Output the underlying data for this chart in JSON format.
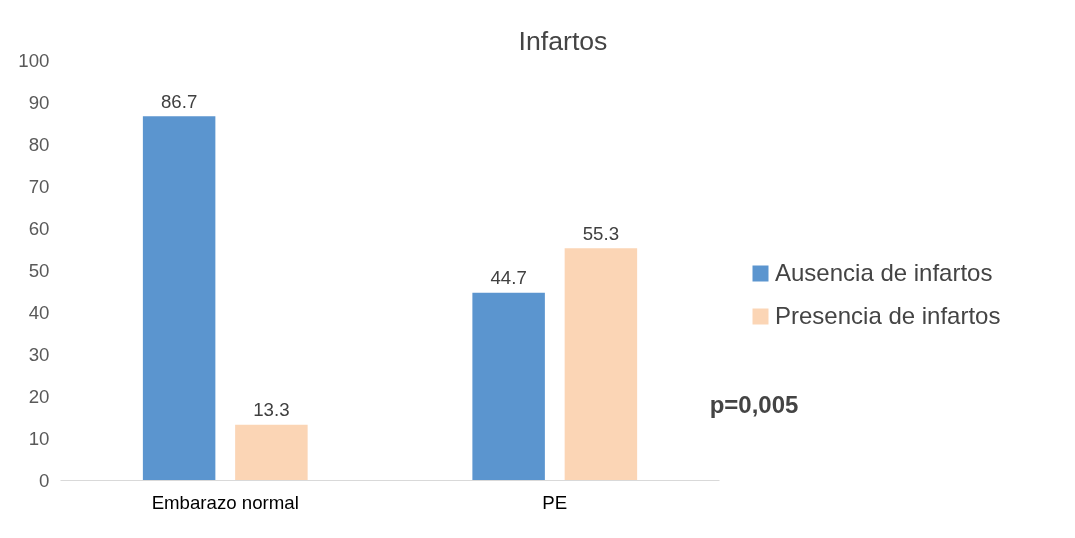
{
  "chart_data": {
    "type": "bar",
    "title": "Infartos",
    "categories": [
      "Embarazo normal",
      "PE"
    ],
    "series": [
      {
        "name": "Ausencia de infartos",
        "color": "#5b95cf",
        "values": [
          86.7,
          44.7
        ]
      },
      {
        "name": "Presencia de infartos",
        "color": "#fbd5b5",
        "values": [
          13.3,
          55.3
        ]
      }
    ],
    "ylim": [
      0,
      100
    ],
    "yticks": [
      0,
      10,
      20,
      30,
      40,
      50,
      60,
      70,
      80,
      90,
      100
    ],
    "grid": false,
    "legend": "right",
    "data_labels": true,
    "annotations": [
      "p=0,005"
    ]
  }
}
